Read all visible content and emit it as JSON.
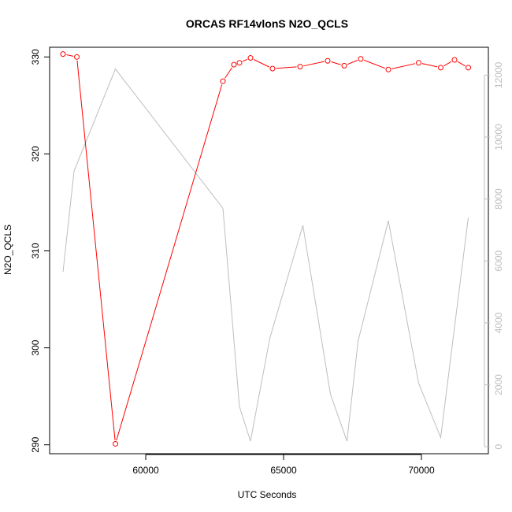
{
  "chart_data": {
    "type": "line",
    "title": "ORCAS RF14vlonS N2O_QCLS",
    "xlabel": "UTC Seconds",
    "ylabel": "N2O_QCLS",
    "xlim": [
      56800,
      72000
    ],
    "ylim": [
      289,
      331
    ],
    "y2lim": [
      -250,
      12900
    ],
    "x_ticks": [
      60000,
      65000,
      70000
    ],
    "y_ticks": [
      290,
      300,
      310,
      320,
      330
    ],
    "y2_ticks": [
      0,
      2000,
      4000,
      6000,
      8000,
      10000,
      12000
    ],
    "grid": false,
    "colors": {
      "primary": "#ff0000",
      "secondary": "#bebebe",
      "axis": "#000000"
    },
    "series": [
      {
        "axis": "left",
        "style": "line+markers",
        "x": [
          57000,
          57500,
          58900,
          62800,
          63200,
          63400,
          63800,
          64600,
          65600,
          66600,
          67200,
          67800,
          68800,
          69900,
          70700,
          71200,
          71700
        ],
        "y": [
          330.3,
          330.0,
          290.1,
          327.5,
          329.2,
          329.4,
          329.9,
          328.8,
          329.0,
          329.6,
          329.1,
          329.8,
          328.7,
          329.4,
          328.9,
          329.7,
          328.9
        ]
      },
      {
        "axis": "right",
        "style": "line",
        "x": [
          57000,
          57400,
          58900,
          62800,
          63400,
          63800,
          64500,
          65700,
          66700,
          67300,
          67700,
          68800,
          69900,
          70700,
          71700
        ],
        "y": [
          5650,
          8900,
          12200,
          7700,
          1300,
          180,
          3500,
          7150,
          1700,
          180,
          3400,
          7300,
          2050,
          300,
          7400
        ]
      }
    ]
  }
}
